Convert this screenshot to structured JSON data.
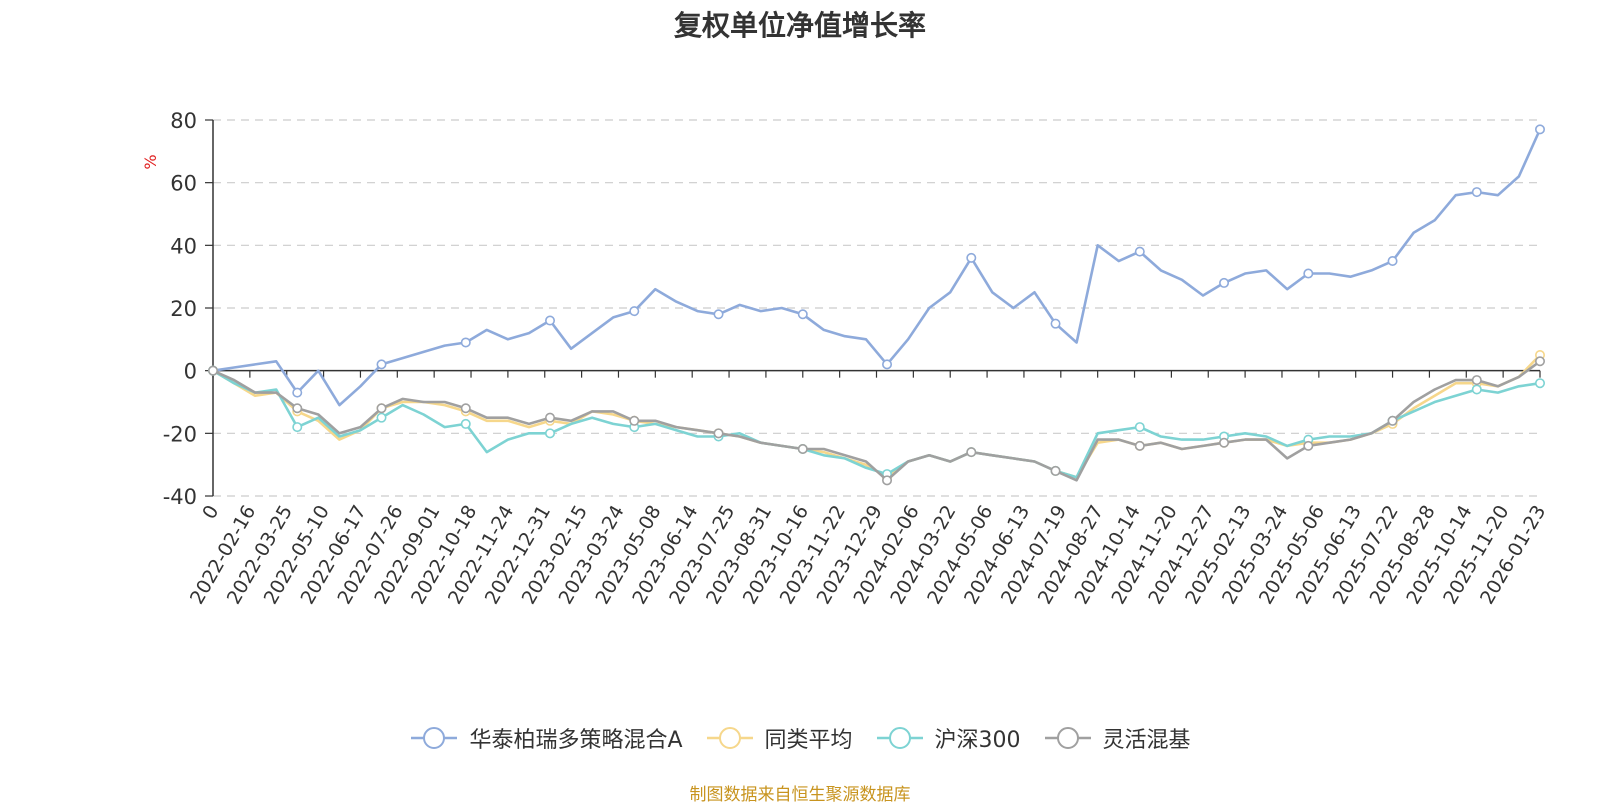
{
  "chart_data": {
    "type": "line",
    "title": "复权单位净值增长率",
    "ylabel": "%",
    "ylim": [
      -40,
      80
    ],
    "yticks": [
      -40,
      -20,
      0,
      20,
      40,
      60,
      80
    ],
    "xticks": [
      "0",
      "2022-02-16",
      "2022-03-25",
      "2022-05-10",
      "2022-06-17",
      "2022-07-26",
      "2022-09-01",
      "2022-10-18",
      "2022-11-24",
      "2022-12-31",
      "2023-02-15",
      "2023-03-24",
      "2023-05-08",
      "2023-06-14",
      "2023-07-25",
      "2023-08-31",
      "2023-10-16",
      "2023-11-22",
      "2023-12-29",
      "2024-02-06",
      "2024-03-22",
      "2024-05-06",
      "2024-06-13",
      "2024-07-19",
      "2024-08-27",
      "2024-10-14",
      "2024-11-20",
      "2024-12-27",
      "2025-02-13",
      "2025-03-24",
      "2025-05-06",
      "2025-06-13",
      "2025-07-22",
      "2025-08-28",
      "2025-10-14",
      "2025-11-20",
      "2026-01-23"
    ],
    "grid": true,
    "legend_position": "bottom",
    "series": [
      {
        "name": "华泰柏瑞多策略混合A",
        "color": "#8eaadb",
        "values": [
          0,
          1,
          2,
          3,
          -7,
          0,
          -11,
          -5,
          2,
          4,
          6,
          8,
          9,
          13,
          10,
          12,
          16,
          7,
          12,
          17,
          19,
          26,
          22,
          19,
          18,
          21,
          19,
          20,
          18,
          13,
          11,
          10,
          2,
          10,
          20,
          25,
          36,
          25,
          20,
          25,
          15,
          9,
          40,
          35,
          38,
          32,
          29,
          24,
          28,
          31,
          32,
          26,
          31,
          31,
          30,
          32,
          35,
          44,
          48,
          56,
          57,
          56,
          62,
          77
        ]
      },
      {
        "name": "同类平均",
        "color": "#f6d78b",
        "values": [
          0,
          -4,
          -8,
          -7,
          -13,
          -16,
          -22,
          -19,
          -12,
          -10,
          -10,
          -11,
          -13,
          -16,
          -16,
          -18,
          -16,
          -17,
          -13,
          -14,
          -16,
          -17,
          -18,
          -19,
          -20,
          -21,
          -23,
          -24,
          -25,
          -26,
          -28,
          -30,
          -34,
          -29,
          -27,
          -29,
          -26,
          -27,
          -28,
          -29,
          -32,
          -34,
          -23,
          -22,
          -24,
          -23,
          -25,
          -24,
          -23,
          -22,
          -22,
          -24,
          -23,
          -23,
          -22,
          -20,
          -17,
          -12,
          -8,
          -4,
          -4,
          -5,
          -2,
          5
        ]
      },
      {
        "name": "沪深300",
        "color": "#7dd3d3",
        "values": [
          0,
          -4,
          -7,
          -6,
          -18,
          -15,
          -21,
          -19,
          -15,
          -11,
          -14,
          -18,
          -17,
          -26,
          -22,
          -20,
          -20,
          -17,
          -15,
          -17,
          -18,
          -17,
          -19,
          -21,
          -21,
          -20,
          -23,
          -24,
          -25,
          -27,
          -28,
          -31,
          -33,
          -29,
          -27,
          -29,
          -26,
          -27,
          -28,
          -29,
          -32,
          -34,
          -20,
          -19,
          -18,
          -21,
          -22,
          -22,
          -21,
          -20,
          -21,
          -24,
          -22,
          -21,
          -21,
          -20,
          -16,
          -13,
          -10,
          -8,
          -6,
          -7,
          -5,
          -4
        ]
      },
      {
        "name": "灵活混基",
        "color": "#a0a0a0",
        "values": [
          0,
          -3,
          -7,
          -7,
          -12,
          -14,
          -20,
          -18,
          -12,
          -9,
          -10,
          -10,
          -12,
          -15,
          -15,
          -17,
          -15,
          -16,
          -13,
          -13,
          -16,
          -16,
          -18,
          -19,
          -20,
          -21,
          -23,
          -24,
          -25,
          -25,
          -27,
          -29,
          -35,
          -29,
          -27,
          -29,
          -26,
          -27,
          -28,
          -29,
          -32,
          -35,
          -22,
          -22,
          -24,
          -23,
          -25,
          -24,
          -23,
          -22,
          -22,
          -28,
          -24,
          -23,
          -22,
          -20,
          -16,
          -10,
          -6,
          -3,
          -3,
          -5,
          -2,
          3
        ]
      }
    ]
  },
  "source": "制图数据来自恒生聚源数据库"
}
